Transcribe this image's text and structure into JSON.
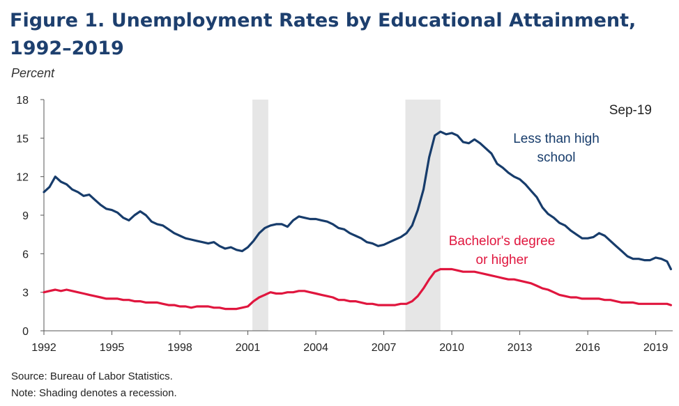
{
  "title": "Figure 1. Unemployment Rates by Educational Attainment, 1992–2019",
  "unit_label": "Percent",
  "source": "Source: Bureau of Labor Statistics.",
  "note": "Note: Shading denotes a recession.",
  "colors": {
    "title": "#1d3f6e",
    "less_hs": "#173c6b",
    "bachelor": "#e0163e",
    "recession": "#e6e6e6"
  },
  "chart_data": {
    "type": "line",
    "title": "Figure 1. Unemployment Rates by Educational Attainment, 1992–2019",
    "ylabel": "Percent",
    "xlabel": "",
    "xlim": [
      1992,
      2019.75
    ],
    "ylim": [
      0,
      18
    ],
    "yticks": [
      0,
      3,
      6,
      9,
      12,
      15,
      18
    ],
    "xticks": [
      1992,
      1995,
      1998,
      2001,
      2004,
      2007,
      2010,
      2013,
      2016,
      2019
    ],
    "grid": false,
    "date_annotation": "Sep-19",
    "recessions": [
      [
        2001.2,
        2001.9
      ],
      [
        2007.95,
        2009.5
      ]
    ],
    "series": [
      {
        "name": "Less than high school",
        "label_lines": [
          "Less than high",
          "school"
        ],
        "color": "#173c6b",
        "x": [
          1992.0,
          1992.25,
          1992.5,
          1992.75,
          1993.0,
          1993.25,
          1993.5,
          1993.75,
          1994.0,
          1994.25,
          1994.5,
          1994.75,
          1995.0,
          1995.25,
          1995.5,
          1995.75,
          1996.0,
          1996.25,
          1996.5,
          1996.75,
          1997.0,
          1997.25,
          1997.5,
          1997.75,
          1998.0,
          1998.25,
          1998.5,
          1998.75,
          1999.0,
          1999.25,
          1999.5,
          1999.75,
          2000.0,
          2000.25,
          2000.5,
          2000.75,
          2001.0,
          2001.25,
          2001.5,
          2001.75,
          2002.0,
          2002.25,
          2002.5,
          2002.75,
          2003.0,
          2003.25,
          2003.5,
          2003.75,
          2004.0,
          2004.25,
          2004.5,
          2004.75,
          2005.0,
          2005.25,
          2005.5,
          2005.75,
          2006.0,
          2006.25,
          2006.5,
          2006.75,
          2007.0,
          2007.25,
          2007.5,
          2007.75,
          2008.0,
          2008.25,
          2008.5,
          2008.75,
          2009.0,
          2009.25,
          2009.5,
          2009.75,
          2010.0,
          2010.25,
          2010.5,
          2010.75,
          2011.0,
          2011.25,
          2011.5,
          2011.75,
          2012.0,
          2012.25,
          2012.5,
          2012.75,
          2013.0,
          2013.25,
          2013.5,
          2013.75,
          2014.0,
          2014.25,
          2014.5,
          2014.75,
          2015.0,
          2015.25,
          2015.5,
          2015.75,
          2016.0,
          2016.25,
          2016.5,
          2016.75,
          2017.0,
          2017.25,
          2017.5,
          2017.75,
          2018.0,
          2018.25,
          2018.5,
          2018.75,
          2019.0,
          2019.25,
          2019.5,
          2019.67
        ],
        "values": [
          10.8,
          11.2,
          12.0,
          11.6,
          11.4,
          11.0,
          10.8,
          10.5,
          10.6,
          10.2,
          9.8,
          9.5,
          9.4,
          9.2,
          8.8,
          8.6,
          9.0,
          9.3,
          9.0,
          8.5,
          8.3,
          8.2,
          7.9,
          7.6,
          7.4,
          7.2,
          7.1,
          7.0,
          6.9,
          6.8,
          6.9,
          6.6,
          6.4,
          6.5,
          6.3,
          6.2,
          6.5,
          7.0,
          7.6,
          8.0,
          8.2,
          8.3,
          8.3,
          8.1,
          8.6,
          8.9,
          8.8,
          8.7,
          8.7,
          8.6,
          8.5,
          8.3,
          8.0,
          7.9,
          7.6,
          7.4,
          7.2,
          6.9,
          6.8,
          6.6,
          6.7,
          6.9,
          7.1,
          7.3,
          7.6,
          8.2,
          9.4,
          11.0,
          13.5,
          15.2,
          15.5,
          15.3,
          15.4,
          15.2,
          14.7,
          14.6,
          14.9,
          14.6,
          14.2,
          13.8,
          13.0,
          12.7,
          12.3,
          12.0,
          11.8,
          11.4,
          10.9,
          10.4,
          9.6,
          9.1,
          8.8,
          8.4,
          8.2,
          7.8,
          7.5,
          7.2,
          7.2,
          7.3,
          7.6,
          7.4,
          7.0,
          6.6,
          6.2,
          5.8,
          5.6,
          5.6,
          5.5,
          5.5,
          5.7,
          5.6,
          5.4,
          4.8
        ]
      },
      {
        "name": "Bachelor's degree or higher",
        "label_lines": [
          "Bachelor's degree",
          "or higher"
        ],
        "color": "#e0163e",
        "x": [
          1992.0,
          1992.25,
          1992.5,
          1992.75,
          1993.0,
          1993.25,
          1993.5,
          1993.75,
          1994.0,
          1994.25,
          1994.5,
          1994.75,
          1995.0,
          1995.25,
          1995.5,
          1995.75,
          1996.0,
          1996.25,
          1996.5,
          1996.75,
          1997.0,
          1997.25,
          1997.5,
          1997.75,
          1998.0,
          1998.25,
          1998.5,
          1998.75,
          1999.0,
          1999.25,
          1999.5,
          1999.75,
          2000.0,
          2000.25,
          2000.5,
          2000.75,
          2001.0,
          2001.25,
          2001.5,
          2001.75,
          2002.0,
          2002.25,
          2002.5,
          2002.75,
          2003.0,
          2003.25,
          2003.5,
          2003.75,
          2004.0,
          2004.25,
          2004.5,
          2004.75,
          2005.0,
          2005.25,
          2005.5,
          2005.75,
          2006.0,
          2006.25,
          2006.5,
          2006.75,
          2007.0,
          2007.25,
          2007.5,
          2007.75,
          2008.0,
          2008.25,
          2008.5,
          2008.75,
          2009.0,
          2009.25,
          2009.5,
          2009.75,
          2010.0,
          2010.25,
          2010.5,
          2010.75,
          2011.0,
          2011.25,
          2011.5,
          2011.75,
          2012.0,
          2012.25,
          2012.5,
          2012.75,
          2013.0,
          2013.25,
          2013.5,
          2013.75,
          2014.0,
          2014.25,
          2014.5,
          2014.75,
          2015.0,
          2015.25,
          2015.5,
          2015.75,
          2016.0,
          2016.25,
          2016.5,
          2016.75,
          2017.0,
          2017.25,
          2017.5,
          2017.75,
          2018.0,
          2018.25,
          2018.5,
          2018.75,
          2019.0,
          2019.25,
          2019.5,
          2019.67
        ],
        "values": [
          3.0,
          3.1,
          3.2,
          3.1,
          3.2,
          3.1,
          3.0,
          2.9,
          2.8,
          2.7,
          2.6,
          2.5,
          2.5,
          2.5,
          2.4,
          2.4,
          2.3,
          2.3,
          2.2,
          2.2,
          2.2,
          2.1,
          2.0,
          2.0,
          1.9,
          1.9,
          1.8,
          1.9,
          1.9,
          1.9,
          1.8,
          1.8,
          1.7,
          1.7,
          1.7,
          1.8,
          1.9,
          2.3,
          2.6,
          2.8,
          3.0,
          2.9,
          2.9,
          3.0,
          3.0,
          3.1,
          3.1,
          3.0,
          2.9,
          2.8,
          2.7,
          2.6,
          2.4,
          2.4,
          2.3,
          2.3,
          2.2,
          2.1,
          2.1,
          2.0,
          2.0,
          2.0,
          2.0,
          2.1,
          2.1,
          2.3,
          2.7,
          3.3,
          4.0,
          4.6,
          4.8,
          4.8,
          4.8,
          4.7,
          4.6,
          4.6,
          4.6,
          4.5,
          4.4,
          4.3,
          4.2,
          4.1,
          4.0,
          4.0,
          3.9,
          3.8,
          3.7,
          3.5,
          3.3,
          3.2,
          3.0,
          2.8,
          2.7,
          2.6,
          2.6,
          2.5,
          2.5,
          2.5,
          2.5,
          2.4,
          2.4,
          2.3,
          2.2,
          2.2,
          2.2,
          2.1,
          2.1,
          2.1,
          2.1,
          2.1,
          2.1,
          2.0
        ]
      }
    ]
  }
}
